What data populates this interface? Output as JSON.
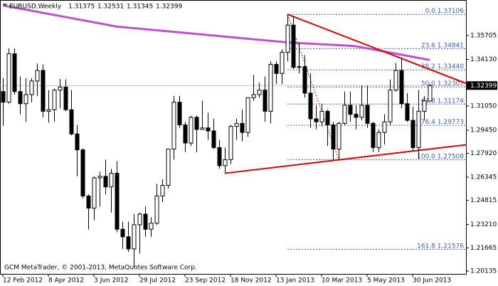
{
  "chart_data": {
    "type": "candlestick",
    "title": "EURUSD,Weekly",
    "footer": "GCM MetaTrader, © 2001-2013, MetaQuotes Software Corp.",
    "categories": [
      "12 Feb 2012",
      null,
      null,
      null,
      null,
      null,
      null,
      null,
      "8 Apr 2012",
      null,
      null,
      null,
      null,
      null,
      null,
      null,
      "3 Jun 2012",
      null,
      null,
      null,
      null,
      null,
      null,
      null,
      "29 Jul 2012",
      null,
      null,
      null,
      null,
      null,
      null,
      null,
      "23 Sep 2012",
      null,
      null,
      null,
      null,
      null,
      null,
      null,
      "18 Nov 2012",
      null,
      null,
      null,
      null,
      null,
      null,
      null,
      "13 Jan 2013",
      null,
      null,
      null,
      null,
      null,
      null,
      null,
      "10 Mar 2013",
      null,
      null,
      null,
      null,
      null,
      null,
      null,
      "5 May 2013",
      null,
      null,
      null,
      null,
      null,
      null,
      null,
      "30 Jun 2013",
      null,
      null,
      null
    ],
    "open": [
      1.32,
      1.313,
      1.345,
      1.32,
      1.312,
      1.318,
      1.327,
      1.334,
      1.307,
      1.308,
      1.321,
      1.323,
      1.308,
      1.292,
      1.2815,
      1.251,
      1.243,
      1.263,
      1.264,
      1.257,
      1.266,
      1.229,
      1.224,
      1.216,
      1.232,
      1.239,
      1.229,
      1.233,
      1.251,
      1.258,
      1.282,
      1.313,
      1.298,
      1.286,
      1.303,
      1.295,
      1.296,
      1.294,
      1.283,
      1.271,
      1.275,
      1.297,
      1.299,
      1.293,
      1.316,
      1.318,
      1.321,
      1.307,
      1.338,
      1.332,
      1.346,
      1.364,
      1.336,
      1.3365,
      1.319,
      1.302,
      1.3,
      1.307,
      1.298,
      1.282,
      1.299,
      1.311,
      1.305,
      1.303,
      1.311,
      1.299,
      1.283,
      1.293,
      1.3,
      1.321,
      1.334,
      1.312,
      1.301,
      1.283,
      1.307,
      1.31375
    ],
    "high": [
      1.329,
      1.3486,
      1.3486,
      1.33,
      1.329,
      1.329,
      1.3385,
      1.338,
      1.321,
      1.322,
      1.3283,
      1.3282,
      1.321,
      1.298,
      1.2825,
      1.252,
      1.264,
      1.267,
      1.275,
      1.269,
      1.274,
      1.234,
      1.234,
      1.239,
      1.24,
      1.244,
      1.237,
      1.259,
      1.262,
      1.282,
      1.317,
      1.3172,
      1.3,
      1.304,
      1.304,
      1.314,
      1.306,
      1.302,
      1.288,
      1.283,
      1.298,
      1.302,
      1.308,
      1.316,
      1.331,
      1.326,
      1.33,
      1.34,
      1.34,
      1.348,
      1.3711,
      1.37,
      1.352,
      1.344,
      1.332,
      1.311,
      1.312,
      1.308,
      1.3,
      1.3,
      1.32,
      1.32,
      1.311,
      1.324,
      1.324,
      1.3,
      1.295,
      1.305,
      1.328,
      1.339,
      1.3416,
      1.319,
      1.31,
      1.321,
      1.317,
      1.32531
    ],
    "low": [
      1.2973,
      1.312,
      1.318,
      1.305,
      1.3,
      1.313,
      1.317,
      1.303,
      1.2995,
      1.3,
      1.309,
      1.307,
      1.291,
      1.264,
      1.2495,
      1.2288,
      1.235,
      1.244,
      1.252,
      1.24,
      1.227,
      1.216,
      1.214,
      1.2042,
      1.213,
      1.224,
      1.224,
      1.232,
      1.247,
      1.256,
      1.275,
      1.296,
      1.28,
      1.284,
      1.28,
      1.295,
      1.288,
      1.282,
      1.269,
      1.266,
      1.272,
      1.288,
      1.287,
      1.29,
      1.314,
      1.316,
      1.3,
      1.299,
      1.325,
      1.325,
      1.34,
      1.335,
      1.332,
      1.316,
      1.296,
      1.295,
      1.297,
      1.284,
      1.275,
      1.2751,
      1.298,
      1.3,
      1.295,
      1.301,
      1.296,
      1.28,
      1.28,
      1.285,
      1.298,
      1.32,
      1.309,
      1.3,
      1.2805,
      1.2755,
      1.301,
      1.31345
    ],
    "close": [
      1.313,
      1.345,
      1.32,
      1.312,
      1.318,
      1.327,
      1.334,
      1.307,
      1.308,
      1.321,
      1.323,
      1.308,
      1.292,
      1.2815,
      1.251,
      1.243,
      1.263,
      1.264,
      1.257,
      1.266,
      1.229,
      1.224,
      1.216,
      1.232,
      1.239,
      1.229,
      1.233,
      1.251,
      1.258,
      1.282,
      1.313,
      1.298,
      1.286,
      1.303,
      1.295,
      1.296,
      1.294,
      1.283,
      1.271,
      1.275,
      1.297,
      1.299,
      1.293,
      1.316,
      1.318,
      1.321,
      1.307,
      1.338,
      1.332,
      1.346,
      1.364,
      1.336,
      1.3365,
      1.319,
      1.302,
      1.3,
      1.307,
      1.298,
      1.282,
      1.299,
      1.311,
      1.305,
      1.303,
      1.311,
      1.299,
      1.283,
      1.293,
      1.3,
      1.321,
      1.334,
      1.312,
      1.301,
      1.283,
      1.307,
      1.314,
      1.32399
    ],
    "up_color": "#ffffff",
    "down_color": "#000000",
    "ma": {
      "color": "#c050d0",
      "values": [
        1.377,
        1.3763,
        1.3756,
        1.3749,
        1.3742,
        1.3735,
        1.3728,
        1.3721,
        1.3714,
        1.3707,
        1.37,
        1.3693,
        1.3686,
        1.3679,
        1.3672,
        1.3665,
        1.3658,
        1.3651,
        1.3644,
        1.3637,
        1.363,
        1.3627,
        1.3623,
        1.362,
        1.3616,
        1.3613,
        1.3609,
        1.3606,
        1.3602,
        1.3599,
        1.3595,
        1.3592,
        1.3588,
        1.3585,
        1.3581,
        1.3578,
        1.3574,
        1.3571,
        1.3567,
        1.3564,
        1.356,
        1.3557,
        1.3553,
        1.355,
        1.3546,
        1.3543,
        1.3539,
        1.3536,
        1.3532,
        1.3529,
        1.3525,
        1.3523,
        1.3521,
        1.3519,
        1.3517,
        1.3515,
        1.3513,
        1.3511,
        1.3509,
        1.3507,
        1.3505,
        1.3503,
        1.35,
        1.3493,
        1.3486,
        1.3479,
        1.3472,
        1.3465,
        1.3458,
        1.3451,
        1.3444,
        1.3437,
        1.343,
        1.3423,
        1.3416,
        1.3409
      ]
    },
    "trendlines": [
      {
        "x": [
          39,
          75
        ],
        "y": [
          1.266,
          1.282
        ],
        "color": "#e00000"
      },
      {
        "x": [
          50,
          75
        ],
        "y": [
          1.3711,
          1.3347
        ],
        "color": "#e00000"
      }
    ],
    "fib": {
      "color": "#3a5fb0",
      "line_color": "#e00000",
      "x": [
        50,
        59
      ],
      "levels": [
        {
          "ratio": "0.0",
          "value": 1.37106
        },
        {
          "ratio": "23.6",
          "value": 1.34841
        },
        {
          "ratio": "38.2",
          "value": 1.3344,
          "label": "1.33440"
        },
        {
          "ratio": "50.0",
          "value": 1.32307
        },
        {
          "ratio": "61.8",
          "value": 1.31174
        },
        {
          "ratio": "76.4",
          "value": 1.29773
        },
        {
          "ratio": "100.0",
          "value": 1.27508
        },
        {
          "ratio": "161.8",
          "value": 1.21576
        }
      ]
    },
    "ylim": [
      1.19947,
      1.38056
    ],
    "yticks": [
      1.35705,
      {
        "value": 1.3413,
        "label": "1.34130"
      },
      {
        "value": 1.3105,
        "label": "1.31050"
      },
      {
        "value": 1.2945,
        "label": "1.29450"
      },
      {
        "value": 1.2792,
        "label": "1.27920"
      },
      1.26345,
      1.24815,
      {
        "value": 1.2321,
        "label": "1.23210"
      },
      1.21665,
      1.20135
    ]
  }
}
